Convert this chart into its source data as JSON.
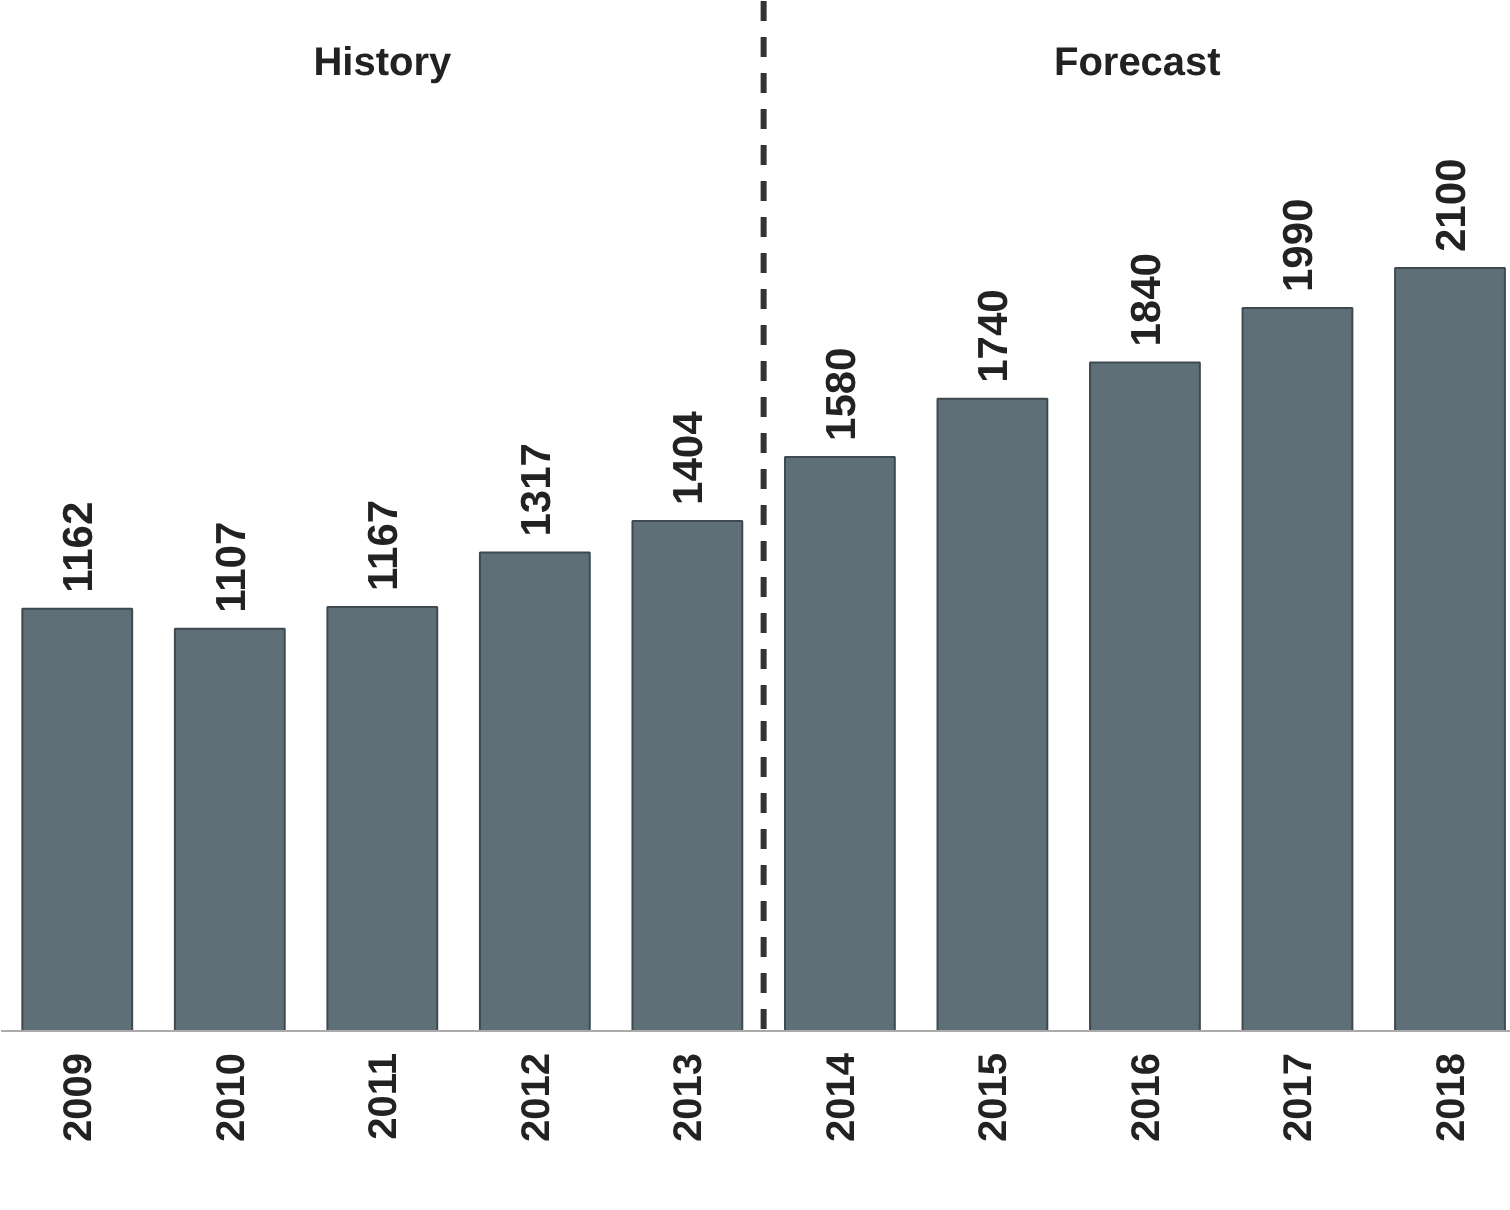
{
  "chart_data": {
    "type": "bar",
    "x": [
      2009,
      2010,
      2011,
      2012,
      2013,
      2014,
      2015,
      2016,
      2017,
      2018
    ],
    "values": [
      1162,
      1107,
      1167,
      1317,
      1404,
      1580,
      1740,
      1840,
      1990,
      2100
    ],
    "color": "#5f6f78",
    "xlim": [
      2008.5,
      2018.4
    ],
    "xticks": [
      2009,
      2010,
      2011,
      2012,
      2013,
      2014,
      2015,
      2016,
      2017,
      2018
    ],
    "data_labels": true,
    "tick_labels": "x",
    "grid": false,
    "ref_lines": [
      {
        "axis": "x",
        "value": 2013.5,
        "label": null,
        "color": "#333333",
        "line_style": "dashed"
      }
    ],
    "annotations": [
      "History",
      "Forecast"
    ]
  }
}
